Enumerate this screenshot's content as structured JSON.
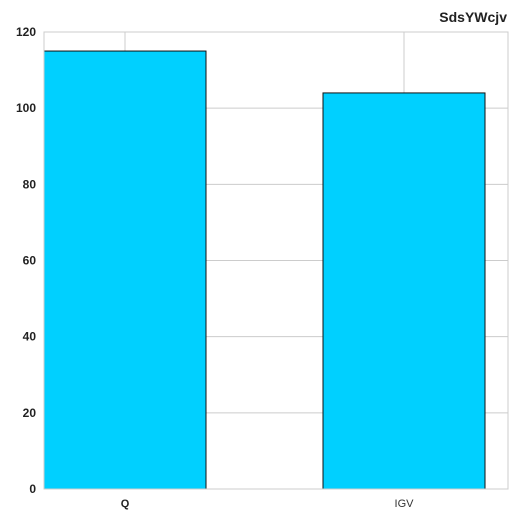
{
  "chart_data": {
    "type": "bar",
    "title": "SdsYWcjv",
    "xlabel": "",
    "ylabel": "",
    "categories": [
      "Q",
      "IGV"
    ],
    "values": [
      115,
      104
    ],
    "ylim": [
      0,
      120
    ],
    "yticks": [
      "0",
      "20",
      "40",
      "60",
      "80",
      "100",
      "120"
    ],
    "grid": true,
    "legend": "none",
    "bar_color": "#00d0ff",
    "edge_color": "#111111",
    "grid_color": "#cccccc"
  }
}
